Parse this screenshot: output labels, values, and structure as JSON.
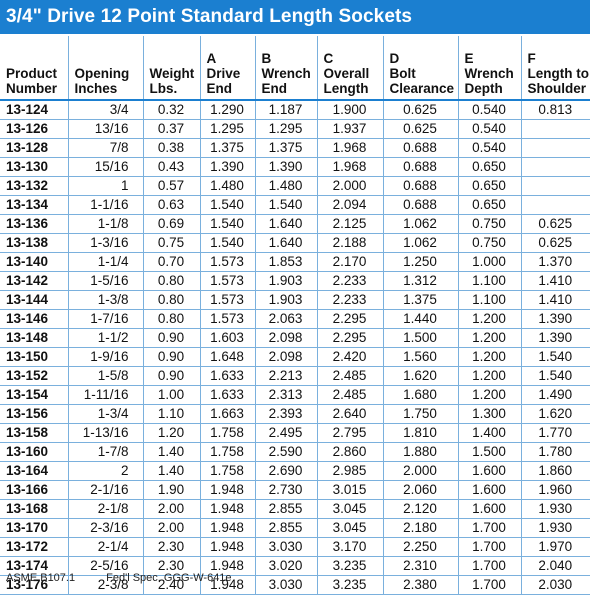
{
  "title": "3/4\" Drive 12 Point Standard Length Sockets",
  "columns": [
    {
      "key": "product",
      "label": "Product\nNumber"
    },
    {
      "key": "opening",
      "label": "Opening\nInches"
    },
    {
      "key": "weight",
      "label": "Weight\nLbs."
    },
    {
      "key": "drive_end",
      "label": "A\nDrive\nEnd"
    },
    {
      "key": "wrench_end",
      "label": "B\nWrench\nEnd"
    },
    {
      "key": "overall_length",
      "label": "C\nOverall\nLength"
    },
    {
      "key": "bolt_clearance",
      "label": "D\nBolt\nClearance"
    },
    {
      "key": "wrench_depth",
      "label": "E\nWrench\nDepth"
    },
    {
      "key": "length_to_shoulder",
      "label": "F\nLength to\nShoulder"
    }
  ],
  "rows": [
    [
      "13-124",
      "3/4",
      "0.32",
      "1.290",
      "1.187",
      "1.900",
      "0.625",
      "0.540",
      "0.813"
    ],
    [
      "13-126",
      "13/16",
      "0.37",
      "1.295",
      "1.295",
      "1.937",
      "0.625",
      "0.540",
      ""
    ],
    [
      "13-128",
      "7/8",
      "0.38",
      "1.375",
      "1.375",
      "1.968",
      "0.688",
      "0.540",
      ""
    ],
    [
      "13-130",
      "15/16",
      "0.43",
      "1.390",
      "1.390",
      "1.968",
      "0.688",
      "0.650",
      ""
    ],
    [
      "13-132",
      "1",
      "0.57",
      "1.480",
      "1.480",
      "2.000",
      "0.688",
      "0.650",
      ""
    ],
    [
      "13-134",
      "1-1/16",
      "0.63",
      "1.540",
      "1.540",
      "2.094",
      "0.688",
      "0.650",
      ""
    ],
    [
      "13-136",
      "1-1/8",
      "0.69",
      "1.540",
      "1.640",
      "2.125",
      "1.062",
      "0.750",
      "0.625"
    ],
    [
      "13-138",
      "1-3/16",
      "0.75",
      "1.540",
      "1.640",
      "2.188",
      "1.062",
      "0.750",
      "0.625"
    ],
    [
      "13-140",
      "1-1/4",
      "0.70",
      "1.573",
      "1.853",
      "2.170",
      "1.250",
      "1.000",
      "1.370"
    ],
    [
      "13-142",
      "1-5/16",
      "0.80",
      "1.573",
      "1.903",
      "2.233",
      "1.312",
      "1.100",
      "1.410"
    ],
    [
      "13-144",
      "1-3/8",
      "0.80",
      "1.573",
      "1.903",
      "2.233",
      "1.375",
      "1.100",
      "1.410"
    ],
    [
      "13-146",
      "1-7/16",
      "0.80",
      "1.573",
      "2.063",
      "2.295",
      "1.440",
      "1.200",
      "1.390"
    ],
    [
      "13-148",
      "1-1/2",
      "0.90",
      "1.603",
      "2.098",
      "2.295",
      "1.500",
      "1.200",
      "1.390"
    ],
    [
      "13-150",
      "1-9/16",
      "0.90",
      "1.648",
      "2.098",
      "2.420",
      "1.560",
      "1.200",
      "1.540"
    ],
    [
      "13-152",
      "1-5/8",
      "0.90",
      "1.633",
      "2.213",
      "2.485",
      "1.620",
      "1.200",
      "1.540"
    ],
    [
      "13-154",
      "1-11/16",
      "1.00",
      "1.633",
      "2.313",
      "2.485",
      "1.680",
      "1.200",
      "1.490"
    ],
    [
      "13-156",
      "1-3/4",
      "1.10",
      "1.663",
      "2.393",
      "2.640",
      "1.750",
      "1.300",
      "1.620"
    ],
    [
      "13-158",
      "1-13/16",
      "1.20",
      "1.758",
      "2.495",
      "2.795",
      "1.810",
      "1.400",
      "1.770"
    ],
    [
      "13-160",
      "1-7/8",
      "1.40",
      "1.758",
      "2.590",
      "2.860",
      "1.880",
      "1.500",
      "1.780"
    ],
    [
      "13-164",
      "2",
      "1.40",
      "1.758",
      "2.690",
      "2.985",
      "2.000",
      "1.600",
      "1.860"
    ],
    [
      "13-166",
      "2-1/16",
      "1.90",
      "1.948",
      "2.730",
      "3.015",
      "2.060",
      "1.600",
      "1.960"
    ],
    [
      "13-168",
      "2-1/8",
      "2.00",
      "1.948",
      "2.855",
      "3.045",
      "2.120",
      "1.600",
      "1.930"
    ],
    [
      "13-170",
      "2-3/16",
      "2.00",
      "1.948",
      "2.855",
      "3.045",
      "2.180",
      "1.700",
      "1.930"
    ],
    [
      "13-172",
      "2-1/4",
      "2.30",
      "1.948",
      "3.030",
      "3.170",
      "2.250",
      "1.700",
      "1.970"
    ],
    [
      "13-174",
      "2-5/16",
      "2.30",
      "1.948",
      "3.020",
      "3.235",
      "2.310",
      "1.700",
      "2.040"
    ],
    [
      "13-176",
      "2-3/8",
      "2.40",
      "1.948",
      "3.030",
      "3.235",
      "2.380",
      "1.700",
      "2.030"
    ]
  ],
  "footer": {
    "standard": "ASME B107.1",
    "spec": "Fed'l Spec. GGG-W-641e"
  },
  "colors": {
    "header_bar": "#1b7fd0",
    "rule_lines": "#7ab0dd"
  }
}
